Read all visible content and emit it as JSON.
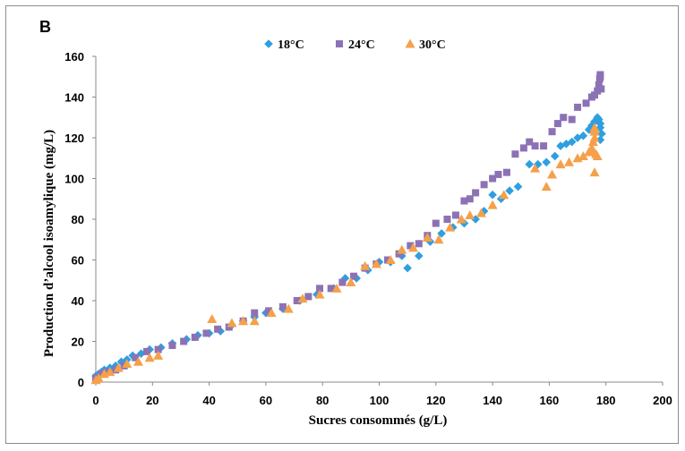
{
  "panel_label": "B",
  "chart_data": {
    "type": "scatter",
    "xlabel": "Sucres consommés (g/L)",
    "ylabel": "Production d’alcool isoamylique (mg/L)",
    "xlim": [
      0,
      200
    ],
    "ylim": [
      0,
      160
    ],
    "x_ticks": [
      0,
      20,
      40,
      60,
      80,
      100,
      120,
      140,
      160,
      180,
      200
    ],
    "y_ticks": [
      0,
      20,
      40,
      60,
      80,
      100,
      120,
      140,
      160
    ],
    "grid": false,
    "legend_position": "top",
    "series": [
      {
        "name": "18°C",
        "color": "#2E9FE0",
        "marker": "diamond",
        "points": [
          [
            0,
            3
          ],
          [
            1,
            4
          ],
          [
            2,
            5
          ],
          [
            3,
            6
          ],
          [
            5,
            7
          ],
          [
            7,
            8
          ],
          [
            9,
            10
          ],
          [
            11,
            11
          ],
          [
            13,
            13
          ],
          [
            16,
            14
          ],
          [
            19,
            16
          ],
          [
            23,
            17
          ],
          [
            27,
            19
          ],
          [
            32,
            21
          ],
          [
            36,
            23
          ],
          [
            40,
            24
          ],
          [
            44,
            25
          ],
          [
            48,
            28
          ],
          [
            52,
            30
          ],
          [
            56,
            32
          ],
          [
            60,
            34
          ],
          [
            66,
            36
          ],
          [
            72,
            40
          ],
          [
            78,
            43
          ],
          [
            84,
            46
          ],
          [
            88,
            51
          ],
          [
            92,
            51
          ],
          [
            96,
            55
          ],
          [
            100,
            59
          ],
          [
            104,
            59
          ],
          [
            108,
            62
          ],
          [
            110,
            56
          ],
          [
            114,
            62
          ],
          [
            118,
            69
          ],
          [
            122,
            73
          ],
          [
            126,
            76
          ],
          [
            130,
            78
          ],
          [
            134,
            80
          ],
          [
            137,
            84
          ],
          [
            140,
            92
          ],
          [
            143,
            90
          ],
          [
            146,
            94
          ],
          [
            149,
            96
          ],
          [
            153,
            107
          ],
          [
            156,
            107
          ],
          [
            159,
            108
          ],
          [
            162,
            111
          ],
          [
            164,
            116
          ],
          [
            166,
            117
          ],
          [
            168,
            118
          ],
          [
            170,
            120
          ],
          [
            172,
            121
          ],
          [
            174,
            124
          ],
          [
            175,
            126
          ],
          [
            176,
            128
          ],
          [
            177,
            130
          ],
          [
            177.5,
            129
          ],
          [
            178,
            127
          ],
          [
            178,
            125
          ],
          [
            178.5,
            122
          ],
          [
            178,
            119
          ]
        ]
      },
      {
        "name": "24°C",
        "color": "#8C72B5",
        "marker": "square",
        "points": [
          [
            0,
            2
          ],
          [
            2,
            4
          ],
          [
            4,
            5
          ],
          [
            7,
            6
          ],
          [
            10,
            8
          ],
          [
            14,
            12
          ],
          [
            18,
            15
          ],
          [
            22,
            16
          ],
          [
            27,
            18
          ],
          [
            31,
            20
          ],
          [
            35,
            22
          ],
          [
            39,
            24
          ],
          [
            43,
            26
          ],
          [
            47,
            27
          ],
          [
            52,
            30
          ],
          [
            56,
            34
          ],
          [
            61,
            35
          ],
          [
            66,
            37
          ],
          [
            71,
            40
          ],
          [
            75,
            42
          ],
          [
            79,
            46
          ],
          [
            83,
            46
          ],
          [
            87,
            49
          ],
          [
            91,
            52
          ],
          [
            95,
            56
          ],
          [
            99,
            58
          ],
          [
            103,
            60
          ],
          [
            107,
            63
          ],
          [
            111,
            67
          ],
          [
            114,
            68
          ],
          [
            117,
            72
          ],
          [
            120,
            78
          ],
          [
            124,
            80
          ],
          [
            127,
            82
          ],
          [
            130,
            89
          ],
          [
            132,
            90
          ],
          [
            134,
            93
          ],
          [
            137,
            97
          ],
          [
            140,
            100
          ],
          [
            142,
            102
          ],
          [
            145,
            103
          ],
          [
            148,
            112
          ],
          [
            151,
            115
          ],
          [
            153,
            118
          ],
          [
            155,
            116
          ],
          [
            158,
            116
          ],
          [
            161,
            123
          ],
          [
            163,
            127
          ],
          [
            165,
            130
          ],
          [
            168,
            129
          ],
          [
            170,
            135
          ],
          [
            173,
            137
          ],
          [
            175,
            140
          ],
          [
            176,
            141
          ],
          [
            177,
            143
          ],
          [
            177.5,
            146
          ],
          [
            177.8,
            149
          ],
          [
            178,
            150
          ],
          [
            178,
            151
          ],
          [
            178.3,
            144
          ]
        ]
      },
      {
        "name": "30°C",
        "color": "#F5A04A",
        "marker": "triangle",
        "points": [
          [
            0,
            1
          ],
          [
            1,
            2
          ],
          [
            3,
            4
          ],
          [
            5,
            5
          ],
          [
            8,
            7
          ],
          [
            11,
            9
          ],
          [
            15,
            10
          ],
          [
            19,
            12
          ],
          [
            22,
            13
          ],
          [
            41,
            31
          ],
          [
            48,
            29
          ],
          [
            52,
            30
          ],
          [
            56,
            30
          ],
          [
            62,
            34
          ],
          [
            68,
            36
          ],
          [
            73,
            41
          ],
          [
            79,
            43
          ],
          [
            85,
            46
          ],
          [
            90,
            49
          ],
          [
            95,
            57
          ],
          [
            99,
            58
          ],
          [
            104,
            60
          ],
          [
            108,
            65
          ],
          [
            112,
            66
          ],
          [
            117,
            71
          ],
          [
            121,
            70
          ],
          [
            125,
            76
          ],
          [
            129,
            80
          ],
          [
            132,
            82
          ],
          [
            136,
            83
          ],
          [
            140,
            87
          ],
          [
            144,
            92
          ],
          [
            155,
            105
          ],
          [
            159,
            96
          ],
          [
            161,
            102
          ],
          [
            164,
            107
          ],
          [
            167,
            108
          ],
          [
            170,
            110
          ],
          [
            172,
            111
          ],
          [
            174,
            113
          ],
          [
            175,
            115
          ],
          [
            175.5,
            118
          ],
          [
            176,
            120
          ],
          [
            176,
            123
          ],
          [
            176,
            124
          ],
          [
            176,
            125
          ],
          [
            175.5,
            113
          ],
          [
            176.5,
            112
          ],
          [
            177,
            111
          ],
          [
            176,
            103
          ]
        ]
      }
    ]
  }
}
